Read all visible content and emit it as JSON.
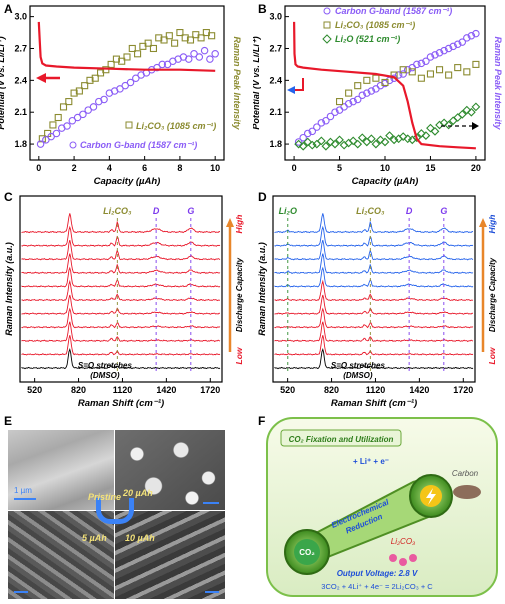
{
  "panels": {
    "A": {
      "letter": "A",
      "xlabel": "Capacity (µAh)",
      "ylabel": "Potential (V vs. Li/Li⁺)",
      "y2label": "Raman Peak Intensity",
      "xticks": [
        "0",
        "2",
        "4",
        "6",
        "8",
        "10"
      ],
      "yticks": [
        "1.8",
        "2.1",
        "2.4",
        "2.7",
        "3.0"
      ],
      "legend": [
        {
          "label": "Li₂CO₃ (1085 cm⁻¹)",
          "color": "#8b8b30"
        },
        {
          "label": "Carbon G-band (1587 cm⁻¹)",
          "color": "#8a5cf6"
        }
      ]
    },
    "B": {
      "letter": "B",
      "xlabel": "Capacity (µAh)",
      "ylabel": "Potential (V vs. Li/Li⁺)",
      "y2label": "Raman Peak Intensity",
      "xticks": [
        "0",
        "5",
        "10",
        "15",
        "20"
      ],
      "yticks": [
        "1.8",
        "2.1",
        "2.4",
        "2.7",
        "3.0"
      ],
      "legend": [
        {
          "label": "Carbon G-band (1587 cm⁻¹)",
          "color": "#8a5cf6"
        },
        {
          "label": "Li₂CO₃ (1085 cm⁻¹)",
          "color": "#8b8b30"
        },
        {
          "label": "Li₂O (521 cm⁻¹)",
          "color": "#2e8b2e"
        }
      ]
    },
    "C": {
      "letter": "C",
      "xlabel": "Raman Shift (cm⁻¹)",
      "ylabel": "Raman Intensity (a.u.)",
      "xticks": [
        "520",
        "820",
        "1120",
        "1420",
        "1720"
      ],
      "peak_labels": [
        "Li₂CO₃",
        "D",
        "G"
      ],
      "bottom_note": [
        "S=O stretches",
        "(DMSO)"
      ],
      "side": {
        "high": "High",
        "label": "Discharge Capacity",
        "low": "Low"
      }
    },
    "D": {
      "letter": "D",
      "xlabel": "Raman Shift (cm⁻¹)",
      "ylabel": "Raman Intensity (a.u.)",
      "xticks": [
        "520",
        "820",
        "1120",
        "1420",
        "1720"
      ],
      "peak_labels": [
        "Li₂O",
        "Li₂CO₃",
        "D",
        "G"
      ],
      "bottom_note": [
        "S=O stretches",
        "(DMSO)"
      ],
      "side": {
        "high": "High",
        "label": "Discharge Capacity",
        "low": "Low"
      }
    },
    "E": {
      "letter": "E",
      "scale_label": "1 µm",
      "labels": [
        "Pristine",
        "20 µAh",
        "5 µAh",
        "10 µAh"
      ]
    },
    "F": {
      "letter": "F",
      "title": "CO₂ Fixation and Utilization",
      "band": [
        "Electrochemical",
        "Reduction"
      ],
      "co2": "CO₂",
      "li2co3": "Li₂CO₃",
      "carbon": "Carbon",
      "reagents": "+ Li⁺ + e⁻",
      "voltage": "Output Voltage: 2.8 V",
      "equation": "3CO₂ + 4Li⁺ + 4e⁻ = 2Li₂CO₃ + C"
    }
  },
  "chart_data": [
    {
      "type": "scatter",
      "panel": "A",
      "xlabel": "Capacity (µAh)",
      "ylabel": "Potential (V vs. Li/Li⁺)",
      "xlim": [
        -0.5,
        10.5
      ],
      "ylim": [
        1.65,
        3.1
      ],
      "series": [
        {
          "name": "Li₂CO₃ (1085 cm⁻¹)",
          "marker": "square",
          "color": "#8b8b30",
          "x": [
            0.2,
            0.5,
            0.8,
            1.1,
            1.4,
            1.7,
            2.0,
            2.3,
            2.6,
            2.9,
            3.2,
            3.5,
            3.8,
            4.1,
            4.4,
            4.7,
            5.0,
            5.3,
            5.6,
            5.9,
            6.2,
            6.5,
            6.8,
            7.1,
            7.4,
            7.7,
            8.0,
            8.3,
            8.6,
            8.9,
            9.2,
            9.5,
            9.8
          ],
          "y": [
            1.85,
            1.9,
            1.98,
            2.05,
            2.15,
            2.2,
            2.28,
            2.3,
            2.35,
            2.4,
            2.42,
            2.47,
            2.5,
            2.55,
            2.6,
            2.58,
            2.62,
            2.7,
            2.65,
            2.72,
            2.75,
            2.7,
            2.8,
            2.78,
            2.82,
            2.75,
            2.85,
            2.8,
            2.78,
            2.83,
            2.8,
            2.85,
            2.82
          ]
        },
        {
          "name": "Carbon G-band (1587 cm⁻¹)",
          "marker": "circle",
          "color": "#8a5cf6",
          "x": [
            0.1,
            0.4,
            0.7,
            1.0,
            1.3,
            1.6,
            1.9,
            2.2,
            2.5,
            2.8,
            3.1,
            3.4,
            3.7,
            4.0,
            4.3,
            4.6,
            4.9,
            5.2,
            5.5,
            5.8,
            6.1,
            6.4,
            6.7,
            7.0,
            7.3,
            7.6,
            7.9,
            8.2,
            8.5,
            8.8,
            9.1,
            9.4,
            9.7,
            10.0
          ],
          "y": [
            1.8,
            1.84,
            1.87,
            1.9,
            1.95,
            1.97,
            2.02,
            2.05,
            2.08,
            2.12,
            2.15,
            2.2,
            2.22,
            2.28,
            2.3,
            2.32,
            2.35,
            2.38,
            2.42,
            2.45,
            2.47,
            2.5,
            2.52,
            2.55,
            2.55,
            2.58,
            2.6,
            2.62,
            2.6,
            2.65,
            2.62,
            2.68,
            2.6,
            2.65
          ]
        },
        {
          "name": "Potential",
          "marker": "line",
          "color": "#e8182a",
          "x": [
            0.0,
            0.05,
            0.1,
            0.2,
            0.4,
            1,
            2,
            4,
            6,
            8,
            10
          ],
          "y": [
            2.95,
            2.78,
            2.62,
            2.56,
            2.54,
            2.53,
            2.52,
            2.51,
            2.5,
            2.5,
            2.49
          ]
        }
      ]
    },
    {
      "type": "scatter",
      "panel": "B",
      "xlabel": "Capacity (µAh)",
      "ylabel": "Potential (V vs. Li/Li⁺)",
      "xlim": [
        -1,
        21
      ],
      "ylim": [
        1.65,
        3.1
      ],
      "series": [
        {
          "name": "Carbon G-band (1587 cm⁻¹)",
          "marker": "circle",
          "color": "#8a5cf6",
          "x": [
            0.5,
            1,
            1.5,
            2,
            2.5,
            3,
            3.5,
            4,
            4.5,
            5,
            5.5,
            6,
            6.5,
            7,
            7.5,
            8,
            8.5,
            9,
            9.5,
            10,
            10.5,
            11,
            11.5,
            12,
            12.5,
            13,
            13.5,
            14,
            14.5,
            15,
            15.5,
            16,
            16.5,
            17,
            17.5,
            18,
            18.5,
            19,
            19.5,
            20
          ],
          "y": [
            1.82,
            1.86,
            1.9,
            1.92,
            1.96,
            2.0,
            2.02,
            2.06,
            2.1,
            2.12,
            2.15,
            2.18,
            2.2,
            2.22,
            2.26,
            2.28,
            2.3,
            2.32,
            2.35,
            2.37,
            2.4,
            2.42,
            2.45,
            2.46,
            2.5,
            2.52,
            2.55,
            2.56,
            2.58,
            2.62,
            2.64,
            2.66,
            2.68,
            2.7,
            2.72,
            2.74,
            2.76,
            2.8,
            2.82,
            2.84
          ]
        },
        {
          "name": "Li₂CO₃ (1085 cm⁻¹)",
          "marker": "square",
          "color": "#8b8b30",
          "x": [
            5,
            6,
            7,
            8,
            9,
            10,
            11,
            12,
            13,
            14,
            15,
            16,
            17,
            18,
            19,
            20
          ],
          "y": [
            2.2,
            2.28,
            2.35,
            2.4,
            2.42,
            2.38,
            2.45,
            2.5,
            2.48,
            2.42,
            2.46,
            2.5,
            2.45,
            2.52,
            2.48,
            2.55
          ]
        },
        {
          "name": "Li₂O (521 cm⁻¹)",
          "marker": "diamond",
          "color": "#2e8b2e",
          "x": [
            0.5,
            1,
            1.5,
            2,
            2.5,
            3,
            3.5,
            4,
            4.5,
            5,
            5.5,
            6,
            6.5,
            7,
            7.5,
            8,
            8.5,
            9,
            9.5,
            10,
            10.5,
            11,
            11.5,
            12,
            12.5,
            13,
            13.5,
            14,
            14.5,
            15,
            15.5,
            16,
            16.5,
            17,
            17.5,
            18,
            18.5,
            19,
            19.5,
            20
          ],
          "y": [
            1.8,
            1.78,
            1.82,
            1.79,
            1.8,
            1.83,
            1.78,
            1.82,
            1.8,
            1.84,
            1.79,
            1.81,
            1.83,
            1.8,
            1.86,
            1.82,
            1.85,
            1.8,
            1.84,
            1.82,
            1.88,
            1.84,
            1.85,
            1.87,
            1.85,
            1.84,
            1.86,
            1.9,
            1.88,
            1.95,
            1.92,
            1.98,
            2.0,
            1.98,
            2.02,
            2.05,
            2.08,
            2.12,
            2.1,
            2.15
          ]
        },
        {
          "name": "Potential",
          "marker": "line",
          "color": "#e8182a",
          "x": [
            0.0,
            0.05,
            0.15,
            0.4,
            1,
            3,
            6,
            9,
            11,
            12,
            12.5,
            13,
            13.5,
            14,
            16,
            18,
            20
          ],
          "y": [
            2.95,
            2.65,
            2.55,
            2.53,
            2.52,
            2.5,
            2.48,
            2.46,
            2.43,
            2.35,
            2.2,
            2.0,
            1.85,
            1.8,
            1.78,
            1.77,
            1.76
          ]
        }
      ]
    },
    {
      "type": "line",
      "panel": "C",
      "xlabel": "Raman Shift (cm⁻¹)",
      "ylabel": "Raman Intensity (a.u.)",
      "xlim": [
        420,
        1800
      ],
      "offsets": 11,
      "series_colors": {
        "bottom": "#000000",
        "others": "#e8182a"
      },
      "peaks": [
        {
          "label": "Li₂CO₃",
          "x": 1085
        },
        {
          "label": "D",
          "x": 1350
        },
        {
          "label": "G",
          "x": 1587
        }
      ]
    },
    {
      "type": "line",
      "panel": "D",
      "xlabel": "Raman Shift (cm⁻¹)",
      "ylabel": "Raman Intensity (a.u.)",
      "xlim": [
        420,
        1800
      ],
      "offsets": 11,
      "series_colors": {
        "bottom": "#000000",
        "middle": "#e8182a",
        "top": "#2563eb"
      },
      "peaks": [
        {
          "label": "Li₂O",
          "x": 521
        },
        {
          "label": "Li₂CO₃",
          "x": 1085
        },
        {
          "label": "D",
          "x": 1350
        },
        {
          "label": "G",
          "x": 1587
        }
      ]
    }
  ]
}
